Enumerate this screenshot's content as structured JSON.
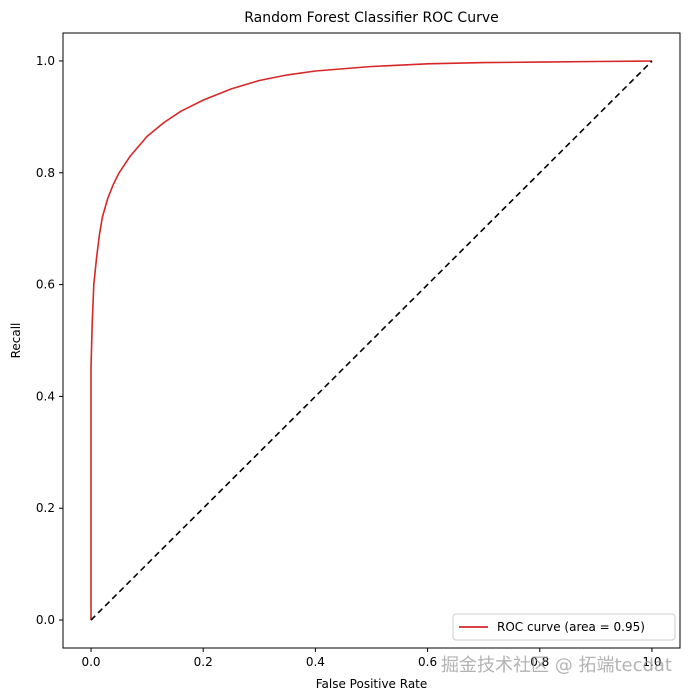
{
  "chart_data": {
    "type": "line",
    "title": "Random Forest Classifier ROC Curve",
    "xlabel": "False Positive Rate",
    "ylabel": "Recall",
    "xlim": [
      -0.05,
      1.05
    ],
    "ylim": [
      -0.05,
      1.05
    ],
    "x_ticks": [
      "0.0",
      "0.2",
      "0.4",
      "0.6",
      "0.8",
      "1.0"
    ],
    "y_ticks": [
      "0.0",
      "0.2",
      "0.4",
      "0.6",
      "0.8",
      "1.0"
    ],
    "grid": false,
    "legend_position": "lower-right",
    "series": [
      {
        "name": "ROC curve (area = 0.95)",
        "color": "#d62728",
        "style": "solid",
        "x": [
          0.0,
          0.0,
          0.002,
          0.005,
          0.01,
          0.015,
          0.02,
          0.03,
          0.04,
          0.05,
          0.07,
          0.1,
          0.13,
          0.16,
          0.2,
          0.25,
          0.3,
          0.35,
          0.4,
          0.5,
          0.6,
          0.7,
          0.8,
          0.9,
          1.0
        ],
        "y": [
          0.0,
          0.45,
          0.53,
          0.6,
          0.65,
          0.69,
          0.72,
          0.755,
          0.78,
          0.8,
          0.83,
          0.865,
          0.89,
          0.91,
          0.93,
          0.95,
          0.965,
          0.975,
          0.982,
          0.99,
          0.995,
          0.997,
          0.998,
          0.999,
          1.0
        ]
      },
      {
        "color": "#000000",
        "style": "dashed",
        "x": [
          0.0,
          1.0
        ],
        "y": [
          0.0,
          1.0
        ]
      }
    ]
  },
  "watermark": "掘金技术社区 @ 拓端tecdat"
}
